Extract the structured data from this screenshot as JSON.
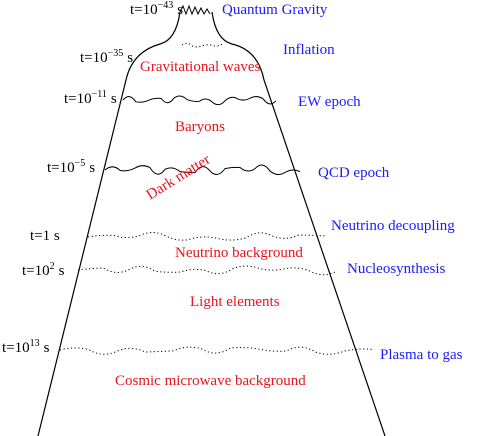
{
  "times": [
    {
      "prefix": "t=10",
      "exponent": "−43",
      "suffix": "s"
    },
    {
      "prefix": "t=10",
      "exponent": "−35",
      "suffix": "s"
    },
    {
      "prefix": "t=10",
      "exponent": "−11",
      "suffix": "s"
    },
    {
      "prefix": "t=10",
      "exponent": "−5",
      "suffix": "s"
    },
    {
      "prefix": "t=1 s"
    },
    {
      "prefix": "t=10",
      "exponent": "2",
      "suffix": "s"
    },
    {
      "prefix": "t=10",
      "exponent": "13",
      "suffix": "s"
    }
  ],
  "epochs": [
    "Quantum Gravity",
    "Inflation",
    "EW epoch",
    "QCD epoch",
    "Neutrino decoupling",
    "Nucleosynthesis",
    "Plasma to gas"
  ],
  "relics": [
    "Gravitational waves",
    "Baryons",
    "Dark matter",
    "Neutrino background",
    "Light elements",
    "Cosmic microwave background"
  ]
}
